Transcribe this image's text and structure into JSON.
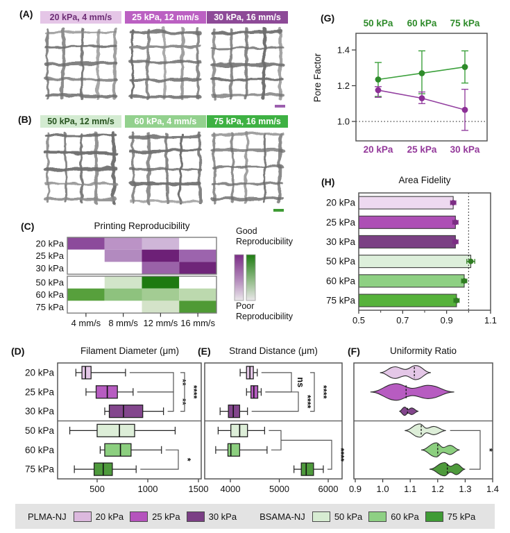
{
  "panel_labels": {
    "A": "(A)",
    "B": "(B)",
    "C": "(C)",
    "D": "(D)",
    "E": "(E)",
    "F": "(F)",
    "G": "(G)",
    "H": "(H)"
  },
  "micrographs": {
    "A": {
      "headers": [
        {
          "text": "20 kPa, 4 mm/s",
          "bg": "#e5c6e7",
          "fg": "#6d2e75"
        },
        {
          "text": "25 kPa, 12 mm/s",
          "bg": "#bb60c2",
          "fg": "#ffffff"
        },
        {
          "text": "30 kPa, 16 mm/s",
          "bg": "#8d4a97",
          "fg": "#ffffff"
        }
      ],
      "scalebar_color": "#9c5fae"
    },
    "B": {
      "headers": [
        {
          "text": "50 kPa, 12 mm/s",
          "bg": "#d3ebd1",
          "fg": "#27531f"
        },
        {
          "text": "60 kPa, 4 mm/s",
          "bg": "#93d18e",
          "fg": "#ffffff"
        },
        {
          "text": "75 kPa, 16 mm/s",
          "bg": "#3eb143",
          "fg": "#ffffff"
        }
      ],
      "scalebar_color": "#3f9b35"
    }
  },
  "legend": {
    "bg": "#e3e3e3",
    "groups": [
      {
        "name": "PLMA-NJ",
        "items": [
          {
            "label": "20 kPa",
            "color": "#dcb9de"
          },
          {
            "label": "25 kPa",
            "color": "#b553bd"
          },
          {
            "label": "30 kPa",
            "color": "#7b3f85"
          }
        ]
      },
      {
        "name": "BSAMA-NJ",
        "items": [
          {
            "label": "50 kPa",
            "color": "#d7ecd2"
          },
          {
            "label": "60 kPa",
            "color": "#8ed084"
          },
          {
            "label": "75 kPa",
            "color": "#3f9b35"
          }
        ]
      }
    ]
  },
  "chart_data": [
    {
      "panel": "C",
      "type": "heatmap",
      "title": "Printing Reproducibility",
      "col_labels": [
        "4 mm/s",
        "8 mm/s",
        "12 mm/s",
        "16 mm/s"
      ],
      "blocks": [
        {
          "rows": [
            "20 kPa",
            "25 kPa",
            "30 kPa"
          ],
          "colors": [
            [
              "#8c4a9b",
              "#bb93c6",
              "#cfb6d8",
              "#ffffff"
            ],
            [
              "#ffffff",
              "#b28abf",
              "#6d2077",
              "#9c64ad"
            ],
            [
              "#ffffff",
              "#ffffff",
              "#9a62a8",
              "#6f2579"
            ]
          ]
        },
        {
          "rows": [
            "50 kPa",
            "60 kPa",
            "75 kPa"
          ],
          "colors": [
            [
              "#ffffff",
              "#d2e5c9",
              "#1e7a10",
              "#ffffff"
            ],
            [
              "#57a03c",
              "#8ec27e",
              "#a3cc93",
              "#bcd9ae"
            ],
            [
              "#ffffff",
              "#ffffff",
              "#d4e3c9",
              "#4f9a35"
            ]
          ]
        }
      ],
      "colorbar": {
        "top_label": "Good Reproducibility",
        "bottom_label": "Poor Reproducibility",
        "purple_top": "#7b2d86",
        "green_top": "#1e7c12",
        "fade_to": "#eae7ea"
      }
    },
    {
      "panel": "G",
      "type": "line",
      "ylabel": "Pore Factor",
      "ylim": [
        0.88,
        1.5
      ],
      "yticks": [
        {
          "v": 1.0,
          "label": "1.0"
        },
        {
          "v": 1.2,
          "label": "1.2"
        },
        {
          "v": 1.4,
          "label": "1.4"
        }
      ],
      "reference_line": 1.0,
      "x_top_labels": [
        "50 kPa",
        "60 kPa",
        "75 kPa"
      ],
      "x_top_color": "#2e8b2a",
      "x_bottom_labels": [
        "20 kPa",
        "25 kPa",
        "30 kPa"
      ],
      "x_bottom_color": "#93389a",
      "series": [
        {
          "name": "BSAMA-NJ",
          "color": "#3ba03b",
          "marker": "#2e8b2a",
          "values": [
            1.235,
            1.27,
            1.305
          ],
          "lo": [
            1.14,
            1.155,
            1.215
          ],
          "hi": [
            1.33,
            1.395,
            1.395
          ]
        },
        {
          "name": "PLMA-NJ",
          "color": "#9340a0",
          "marker": "#8c2f96",
          "values": [
            1.175,
            1.13,
            1.065
          ],
          "lo": [
            1.135,
            1.1,
            0.95
          ],
          "hi": [
            1.195,
            1.165,
            1.18
          ]
        }
      ]
    },
    {
      "panel": "H",
      "type": "bar",
      "orientation": "horizontal",
      "title": "Area Fidelity",
      "categories": [
        "20 kPa",
        "25 kPa",
        "30 kPa",
        "50 kPa",
        "60 kPa",
        "75 kPa"
      ],
      "values": [
        0.93,
        0.94,
        0.94,
        1.01,
        0.98,
        0.945
      ],
      "errors": [
        0.012,
        0.012,
        0.012,
        0.018,
        0.012,
        0.012
      ],
      "colors": [
        "#eed9f0",
        "#ad4fb5",
        "#7b4084",
        "#ddefdb",
        "#8ed083",
        "#56b23b"
      ],
      "dot_colors": [
        "#7c2d84",
        "#7c2d84",
        "#7c2d84",
        "#2f7d22",
        "#2f7d22",
        "#2f7d22"
      ],
      "xlim": [
        0.5,
        1.1
      ],
      "bar_base": 0.5,
      "reference_line": 1.0,
      "xticks": [
        {
          "v": 0.5,
          "label": "0.5"
        },
        {
          "v": 0.7,
          "label": "0.7"
        },
        {
          "v": 0.9,
          "label": "0.9"
        },
        {
          "v": 1.1,
          "label": "1.1"
        }
      ],
      "xticks_minor": [
        0.6,
        0.8,
        1.0
      ]
    },
    {
      "panel": "D",
      "type": "box",
      "title": "Filament Diameter (μm)",
      "categories": [
        "20 kPa",
        "25 kPa",
        "30 kPa",
        "50 kPa",
        "60 kPa",
        "75 kPa"
      ],
      "boxes": [
        {
          "lo": 290,
          "q1": 350,
          "med": 385,
          "q3": 440,
          "hi": 780
        },
        {
          "lo": 390,
          "q1": 490,
          "med": 600,
          "q3": 700,
          "hi": 855
        },
        {
          "lo": 575,
          "q1": 620,
          "med": 760,
          "q3": 950,
          "hi": 1155
        },
        {
          "lo": 230,
          "q1": 500,
          "med": 720,
          "q3": 870,
          "hi": 1270
        },
        {
          "lo": 530,
          "q1": 575,
          "med": 730,
          "q3": 835,
          "hi": 1135
        },
        {
          "lo": 275,
          "q1": 470,
          "med": 560,
          "q3": 650,
          "hi": 885
        }
      ],
      "colors": [
        "#e4c7e7",
        "#b75cc1",
        "#83468d",
        "#ddeed8",
        "#8ccf7f",
        "#4e9a3c"
      ],
      "xlim": [
        110,
        1530
      ],
      "xticks": [
        {
          "v": 500,
          "label": "500"
        },
        {
          "v": 1000,
          "label": "1000"
        },
        {
          "v": 1500,
          "label": "1500"
        }
      ],
      "divider_after": 2,
      "brackets": [
        {
          "from": 0,
          "to": 1,
          "x": 240,
          "label": "**",
          "arm": "whisker"
        },
        {
          "from": 1,
          "to": 2,
          "x": 240,
          "label": "**",
          "arm": "whisker"
        },
        {
          "from": 0,
          "to": 2,
          "x": 256,
          "label": "****",
          "arm": "hook"
        },
        {
          "from": 4,
          "to": 5,
          "x": 247,
          "label": "*",
          "arm": "whisker"
        }
      ]
    },
    {
      "panel": "E",
      "type": "box",
      "title": "Strand Distance (μm)",
      "categories": [
        "20 kPa",
        "25 kPa",
        "30 kPa",
        "50 kPa",
        "60 kPa",
        "75 kPa"
      ],
      "boxes": [
        {
          "lo": 4200,
          "q1": 4330,
          "med": 4400,
          "q3": 4470,
          "hi": 4550
        },
        {
          "lo": 4330,
          "q1": 4420,
          "med": 4480,
          "q3": 4560,
          "hi": 4630
        },
        {
          "lo": 3790,
          "q1": 3960,
          "med": 4060,
          "q3": 4190,
          "hi": 4350
        },
        {
          "lo": 3750,
          "q1": 4010,
          "med": 4190,
          "q3": 4350,
          "hi": 4700
        },
        {
          "lo": 3700,
          "q1": 3950,
          "med": 4010,
          "q3": 4190,
          "hi": 4750
        },
        {
          "lo": 5300,
          "q1": 5450,
          "med": 5550,
          "q3": 5700,
          "hi": 5900
        }
      ],
      "colors": [
        "#e4c7e7",
        "#b75cc1",
        "#83468d",
        "#ddeed8",
        "#8ccf7f",
        "#4e9a3c"
      ],
      "xlim": [
        3450,
        6280
      ],
      "xticks": [
        {
          "v": 4000,
          "label": "4000"
        },
        {
          "v": 5000,
          "label": "5000"
        },
        {
          "v": 6000,
          "label": "6000"
        }
      ],
      "divider_after": 2,
      "brackets": [
        {
          "from": 0,
          "to": 1,
          "x": 135,
          "label": "ns",
          "arm": "whisker"
        },
        {
          "from": 1,
          "to": 2,
          "x": 145,
          "label": "****",
          "arm": "whisker"
        },
        {
          "from": 0,
          "to": 2,
          "x": 168,
          "label": "****",
          "arm": "hook"
        }
      ],
      "merge_bracket": {
        "from": [
          3,
          4
        ],
        "to": 5,
        "x1": 120,
        "x2": 193,
        "label": "****"
      }
    },
    {
      "panel": "F",
      "type": "violin",
      "title": "Uniformity Ratio",
      "categories": [
        "20 kPa",
        "25 kPa",
        "30 kPa",
        "50 kPa",
        "60 kPa",
        "75 kPa"
      ],
      "violins": [
        {
          "lo": 0.99,
          "hi": 1.175,
          "med": 1.115,
          "bulges": [
            [
              1.045,
              0.7
            ],
            [
              1.12,
              0.85
            ]
          ]
        },
        {
          "lo": 0.955,
          "hi": 1.26,
          "med": 1.085,
          "bulges": [
            [
              1.05,
              1.0
            ],
            [
              1.165,
              0.8
            ]
          ]
        },
        {
          "lo": 1.06,
          "hi": 1.13,
          "med": 1.09,
          "bulges": [
            [
              1.08,
              0.5
            ],
            [
              1.105,
              0.4
            ]
          ]
        },
        {
          "lo": 1.08,
          "hi": 1.23,
          "med": 1.14,
          "bulges": [
            [
              1.135,
              0.8
            ],
            [
              1.185,
              0.5
            ]
          ]
        },
        {
          "lo": 1.14,
          "hi": 1.28,
          "med": 1.2,
          "bulges": [
            [
              1.195,
              0.85
            ],
            [
              1.245,
              0.55
            ]
          ]
        },
        {
          "lo": 1.17,
          "hi": 1.3,
          "med": 1.235,
          "bulges": [
            [
              1.225,
              0.8
            ],
            [
              1.268,
              0.65
            ]
          ]
        }
      ],
      "colors": [
        "#e4c7e7",
        "#b75cc1",
        "#83468d",
        "#ddeed8",
        "#8ccf7f",
        "#4e9a3c"
      ],
      "xlim": [
        0.895,
        1.4
      ],
      "xticks": [
        {
          "v": 0.9,
          "label": "0.9"
        },
        {
          "v": 1.0,
          "label": "1.0"
        },
        {
          "v": 1.1,
          "label": "1.1"
        },
        {
          "v": 1.2,
          "label": "1.2"
        },
        {
          "v": 1.3,
          "label": "1.3"
        },
        {
          "v": 1.4,
          "label": "1.4"
        }
      ],
      "divider_after": 2,
      "brackets": [
        {
          "from": 3,
          "to": 5,
          "x": 194,
          "label": "*",
          "arm": "whisker"
        }
      ]
    }
  ]
}
